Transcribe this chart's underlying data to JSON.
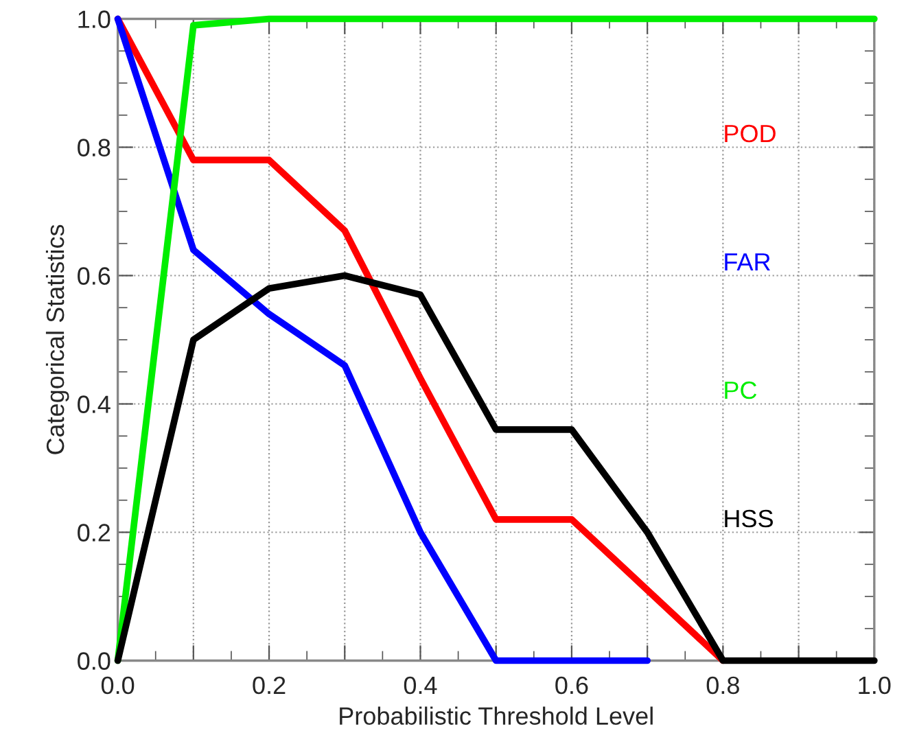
{
  "chart_data": {
    "type": "line",
    "xlabel": "Probabilistic Threshold Level",
    "ylabel": "Categorical Statistics",
    "x": [
      0,
      0.1,
      0.2,
      0.3,
      0.4,
      0.5,
      0.6,
      0.7,
      0.8,
      0.9,
      1.0
    ],
    "series": [
      {
        "name": "POD",
        "color": "#ff0000",
        "values": [
          1.0,
          0.78,
          0.78,
          0.67,
          0.44,
          0.22,
          0.22,
          0.11,
          0.0,
          null,
          null
        ]
      },
      {
        "name": "FAR",
        "color": "#0000ff",
        "values": [
          1.0,
          0.64,
          0.54,
          0.46,
          0.2,
          0.0,
          0.0,
          0.0,
          null,
          null,
          null
        ]
      },
      {
        "name": "PC",
        "color": "#00ee00",
        "values": [
          0.0,
          0.99,
          1.0,
          1.0,
          1.0,
          1.0,
          1.0,
          1.0,
          1.0,
          1.0,
          1.0
        ]
      },
      {
        "name": "HSS",
        "color": "#000000",
        "values": [
          0.0,
          0.5,
          0.58,
          0.6,
          0.57,
          0.36,
          0.36,
          0.2,
          0.0,
          0.0,
          0.0
        ]
      }
    ],
    "xlim": [
      0,
      1.0
    ],
    "ylim": [
      0,
      1.0
    ],
    "xticks": [
      {
        "value": 0,
        "label": "0.0"
      },
      {
        "value": 0.1,
        "label": null
      },
      0.2,
      {
        "value": 0.3,
        "label": null
      },
      0.4,
      {
        "value": 0.5,
        "label": null
      },
      0.6,
      {
        "value": 0.7,
        "label": null
      },
      0.8,
      {
        "value": 0.9,
        "label": null
      },
      {
        "value": 1.0,
        "label": "1.0"
      }
    ],
    "yticks": [
      {
        "value": 0,
        "label": "0.0"
      },
      0.2,
      0.4,
      0.6,
      0.8,
      {
        "value": 1.0,
        "label": "1.0"
      }
    ],
    "grid": true,
    "legend": "right",
    "marker": "none",
    "line_style": "solid"
  }
}
